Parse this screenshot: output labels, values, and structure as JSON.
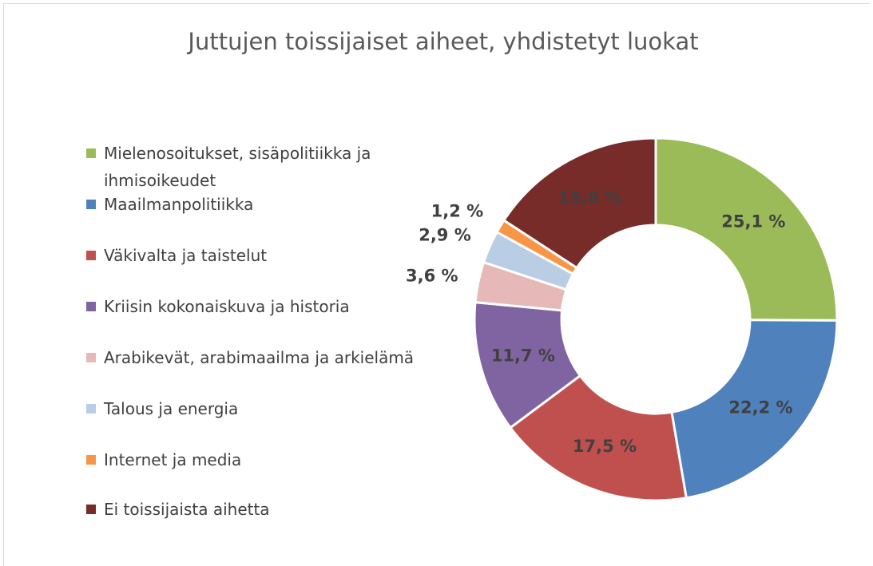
{
  "chart_data": {
    "type": "donut",
    "title": "Juttujen toissijaiset aiheet, yhdistetyt luokat",
    "categories": [
      "Mielenosoitukset, sisäpolitiikka ja ihmisoikeudet",
      "Maailmanpolitiikka",
      "Väkivalta ja taistelut",
      "Kriisin kokonaiskuva ja historia",
      "Arabikevät, arabimaailma ja arkielämä",
      "Talous ja energia",
      "Internet ja media",
      "Ei toissijaista aihetta"
    ],
    "values": [
      25.1,
      22.2,
      17.5,
      11.7,
      3.6,
      2.9,
      1.2,
      15.8
    ],
    "value_labels": [
      "25,1 %",
      "22,2 %",
      "17,5 %",
      "11,7 %",
      "3,6 %",
      "2,9 %",
      "1,2 %",
      "15,8 %"
    ],
    "colors": [
      "#9bbb59",
      "#4f81bd",
      "#c0504d",
      "#8064a2",
      "#e6b9b8",
      "#b9cde5",
      "#f79646",
      "#772c2a"
    ],
    "legend": "left"
  }
}
